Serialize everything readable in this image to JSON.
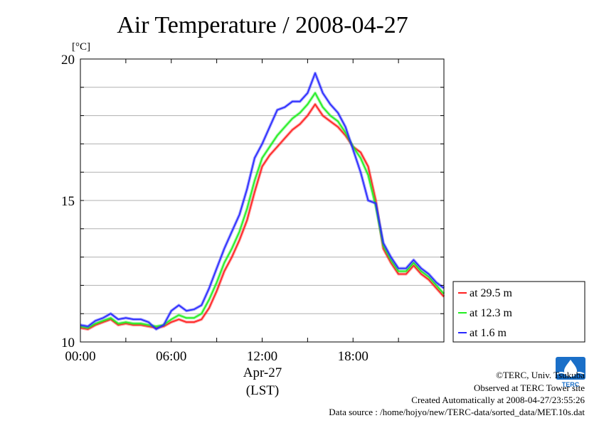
{
  "chart_data": {
    "type": "line",
    "title": "Air Temperature / 2008-04-27",
    "ylabel": "[°C]",
    "ylim": [
      10,
      20
    ],
    "yticks": [
      {
        "value": 10,
        "label": "10"
      },
      {
        "value": 15,
        "label": "15"
      },
      {
        "value": 20,
        "label": "20"
      }
    ],
    "xlim": [
      0,
      24
    ],
    "xticks": [
      {
        "value": 0,
        "label": "00:00"
      },
      {
        "value": 6,
        "label": "06:00"
      },
      {
        "value": 12,
        "label": "12:00"
      },
      {
        "value": 18,
        "label": "18:00"
      }
    ],
    "xlabel_date": "Apr-27",
    "xlabel_tz": "(LST)",
    "grid": true,
    "legend_position": "bottom-right outside",
    "series": [
      {
        "name": "at 29.5 m",
        "color": "#ff2020",
        "x": [
          0,
          0.5,
          1,
          1.5,
          2,
          2.5,
          3,
          3.5,
          4,
          4.5,
          5,
          5.5,
          6,
          6.5,
          7,
          7.5,
          8,
          8.5,
          9,
          9.5,
          10,
          10.5,
          11,
          11.5,
          12,
          12.5,
          13,
          13.5,
          14,
          14.5,
          15,
          15.5,
          16,
          16.5,
          17,
          17.5,
          18,
          18.5,
          19,
          19.5,
          20,
          20.5,
          21,
          21.5,
          22,
          22.5,
          23,
          23.5,
          24
        ],
        "y": [
          10.5,
          10.45,
          10.6,
          10.7,
          10.8,
          10.6,
          10.65,
          10.6,
          10.6,
          10.55,
          10.5,
          10.55,
          10.7,
          10.8,
          10.7,
          10.7,
          10.8,
          11.2,
          11.8,
          12.5,
          13.0,
          13.6,
          14.3,
          15.3,
          16.2,
          16.6,
          16.9,
          17.2,
          17.5,
          17.7,
          18.0,
          18.4,
          18.0,
          17.8,
          17.6,
          17.3,
          16.9,
          16.7,
          16.2,
          15.0,
          13.3,
          12.8,
          12.4,
          12.4,
          12.7,
          12.4,
          12.2,
          11.9,
          11.6
        ]
      },
      {
        "name": "at 12.3 m",
        "color": "#20ee20",
        "x": [
          0,
          0.5,
          1,
          1.5,
          2,
          2.5,
          3,
          3.5,
          4,
          4.5,
          5,
          5.5,
          6,
          6.5,
          7,
          7.5,
          8,
          8.5,
          9,
          9.5,
          10,
          10.5,
          11,
          11.5,
          12,
          12.5,
          13,
          13.5,
          14,
          14.5,
          15,
          15.5,
          16,
          16.5,
          17,
          17.5,
          18,
          18.5,
          19,
          19.5,
          20,
          20.5,
          21,
          21.5,
          22,
          22.5,
          23,
          23.5,
          24
        ],
        "y": [
          10.55,
          10.5,
          10.65,
          10.75,
          10.85,
          10.65,
          10.7,
          10.65,
          10.65,
          10.6,
          10.55,
          10.6,
          10.8,
          10.95,
          10.85,
          10.85,
          11.0,
          11.5,
          12.1,
          12.8,
          13.3,
          13.9,
          14.7,
          15.7,
          16.5,
          16.9,
          17.3,
          17.6,
          17.9,
          18.1,
          18.4,
          18.8,
          18.3,
          18.0,
          17.8,
          17.4,
          16.9,
          16.5,
          15.9,
          14.8,
          13.4,
          12.9,
          12.5,
          12.5,
          12.8,
          12.5,
          12.3,
          12.0,
          11.7
        ]
      },
      {
        "name": "at 1.6 m",
        "color": "#2828ff",
        "x": [
          0,
          0.5,
          1,
          1.5,
          2,
          2.5,
          3,
          3.5,
          4,
          4.5,
          5,
          5.5,
          6,
          6.5,
          7,
          7.5,
          8,
          8.5,
          9,
          9.5,
          10,
          10.5,
          11,
          11.5,
          12,
          12.5,
          13,
          13.5,
          14,
          14.5,
          15,
          15.5,
          16,
          16.5,
          17,
          17.5,
          18,
          18.5,
          19,
          19.5,
          20,
          20.5,
          21,
          21.5,
          22,
          22.5,
          23,
          23.5,
          24
        ],
        "y": [
          10.6,
          10.55,
          10.75,
          10.85,
          11.0,
          10.8,
          10.85,
          10.8,
          10.8,
          10.7,
          10.45,
          10.6,
          11.1,
          11.3,
          11.1,
          11.15,
          11.3,
          11.9,
          12.6,
          13.3,
          13.9,
          14.5,
          15.4,
          16.5,
          17.0,
          17.6,
          18.2,
          18.3,
          18.5,
          18.5,
          18.8,
          19.5,
          18.8,
          18.4,
          18.1,
          17.6,
          16.8,
          16.0,
          15.0,
          14.9,
          13.5,
          13.0,
          12.6,
          12.6,
          12.9,
          12.6,
          12.4,
          12.1,
          11.9
        ]
      }
    ]
  },
  "footer": {
    "copyright": "©TERC, Univ. Tsukuba",
    "observed": "Observed at TERC Tower site",
    "created": "Created Automatically at 2008-04-27/23:55:26",
    "source": "Data source : /home/hojyo/new/TERC-data/sorted_data/MET.10s.dat"
  },
  "logo": {
    "text": "TERC",
    "color": "#1a6fc8"
  }
}
